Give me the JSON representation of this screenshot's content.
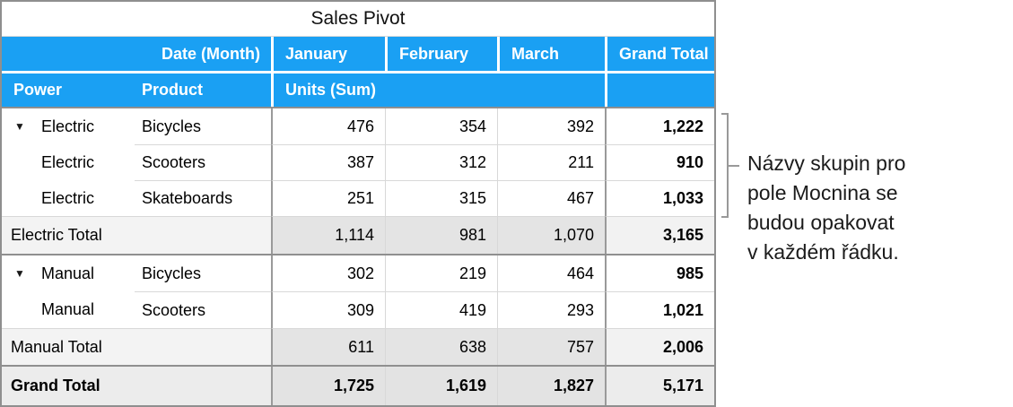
{
  "table": {
    "title": "Sales Pivot",
    "header_row1": {
      "date_label": "Date (Month)",
      "months": [
        "January",
        "February",
        "March"
      ],
      "grand_total_label": "Grand Total"
    },
    "header_row2": {
      "power_label": "Power",
      "product_label": "Product",
      "units_label": "Units (Sum)"
    },
    "disclosure_icon": "▼",
    "rows": [
      {
        "power": "Electric",
        "product": "Bicycles",
        "jan": "476",
        "feb": "354",
        "mar": "392",
        "total": "1,222"
      },
      {
        "power": "Electric",
        "product": "Scooters",
        "jan": "387",
        "feb": "312",
        "mar": "211",
        "total": "910"
      },
      {
        "power": "Electric",
        "product": "Skateboards",
        "jan": "251",
        "feb": "315",
        "mar": "467",
        "total": "1,033"
      },
      {
        "label": "Electric Total",
        "jan": "1,114",
        "feb": "981",
        "mar": "1,070",
        "total": "3,165"
      },
      {
        "power": "Manual",
        "product": "Bicycles",
        "jan": "302",
        "feb": "219",
        "mar": "464",
        "total": "985"
      },
      {
        "power": "Manual",
        "product": "Scooters",
        "jan": "309",
        "feb": "419",
        "mar": "293",
        "total": "1,021"
      },
      {
        "label": "Manual Total",
        "jan": "611",
        "feb": "638",
        "mar": "757",
        "total": "2,006"
      },
      {
        "label": "Grand Total",
        "jan": "1,725",
        "feb": "1,619",
        "mar": "1,827",
        "total": "5,171"
      }
    ]
  },
  "annotation": {
    "lines": [
      "Názvy skupin pro",
      "pole Mocnina se",
      "budou opakovat",
      "v každém řádku."
    ]
  },
  "colors": {
    "header_blue": "#1aa0f3",
    "header_text": "#ffffff",
    "section_border": "#8f8f8f",
    "light_divider": "#d8d8d8",
    "total_label_bg": "#f3f3f3",
    "total_value_bg": "#e4e4e4",
    "grand_row_bg": "#ececec",
    "bracket_gray": "#999999",
    "annotation_text": "#1b1b1b"
  }
}
